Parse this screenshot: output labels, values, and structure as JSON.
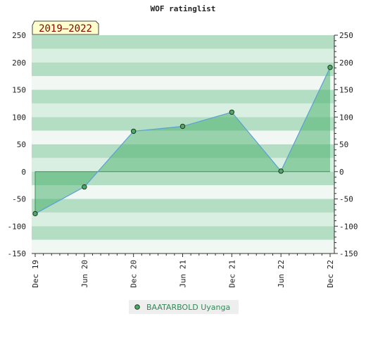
{
  "chart_data": {
    "type": "area",
    "title": "WOF ratinglist",
    "period_badge": "2019–2022",
    "x": [
      "Dec 19",
      "Jun 20",
      "Dec 20",
      "Jun 21",
      "Dec 21",
      "Jun 22",
      "Dec 22"
    ],
    "series": [
      {
        "name": "BAATARBOLD Uyanga",
        "values": [
          -77,
          -28,
          74,
          83,
          109,
          1,
          191
        ]
      }
    ],
    "ylim": [
      -150,
      250
    ],
    "yticks": [
      -150,
      -100,
      -50,
      0,
      50,
      100,
      150,
      200,
      250
    ],
    "y_axes": "left-and-right",
    "grid": "horizontal green bands",
    "legend": "bottom-center",
    "colors": {
      "band_dark": "#b3dec4",
      "band_mid": "#d9efe1",
      "band_light": "#f1f8f3",
      "area_fill": "#4fb371",
      "line": "#5aa0d6",
      "marker": "#4fa86a",
      "legend_bg": "#eeeeee",
      "badge_bg": "#ffffcc"
    }
  }
}
